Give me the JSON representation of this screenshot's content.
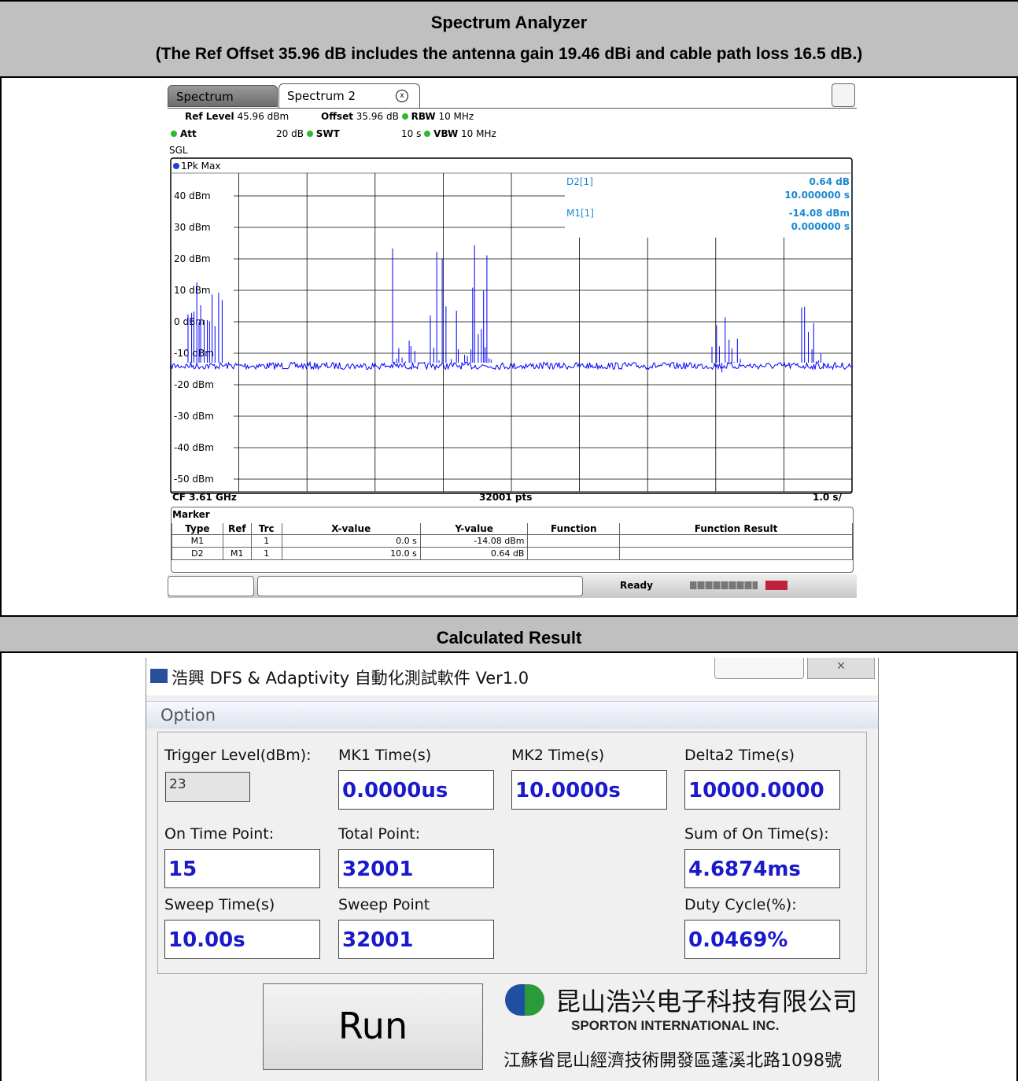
{
  "header": {
    "title": "Spectrum Analyzer",
    "note": "(The Ref Offset 35.96 dB includes the antenna gain 19.46 dBi and cable path loss 16.5 dB.)"
  },
  "spectrum": {
    "tabs": [
      "Spectrum",
      "Spectrum 2"
    ],
    "settings": {
      "ref_level_label": "Ref Level",
      "ref_level": "45.96 dBm",
      "offset_label": "Offset",
      "offset": "35.96 dB",
      "rbw_label": "RBW",
      "rbw": "10 MHz",
      "att_label": "Att",
      "att": "20 dB",
      "swt_label": "SWT",
      "swt": "10 s",
      "vbw_label": "VBW",
      "vbw": "10 MHz",
      "mode": "SGL"
    },
    "trace_label": "1Pk Max",
    "y_labels": [
      "40 dBm",
      "30 dBm",
      "20 dBm",
      "10 dBm",
      "0 dBm",
      "-10 dBm",
      "-20 dBm",
      "-30 dBm",
      "-40 dBm",
      "-50 dBm"
    ],
    "readout": [
      {
        "name": "D2[1]",
        "value": "0.64 dB",
        "time": "10.000000 s"
      },
      {
        "name": "M1[1]",
        "value": "-14.08 dBm",
        "time": "0.000000 s"
      }
    ],
    "footer": {
      "cf": "CF 3.61 GHz",
      "points": "32001 pts",
      "scale": "1.0 s/"
    },
    "marker_table": {
      "title": "Marker",
      "headers": [
        "Type",
        "Ref",
        "Trc",
        "X-value",
        "Y-value",
        "Function",
        "Function Result"
      ],
      "rows": [
        {
          "type": "M1",
          "trc": "1",
          "x": "0.0 s",
          "y": "-14.08 dBm"
        },
        {
          "type": "D2",
          "ref": "M1",
          "trc": "1",
          "x": "10.0 s",
          "y": "0.64 dB"
        }
      ]
    },
    "status": "Ready"
  },
  "calculated": {
    "title": "Calculated Result",
    "app_title": "浩興 DFS & Adaptivity 自動化測試軟件 Ver1.0",
    "menu": "Option",
    "fields": [
      {
        "label": "Trigger Level(dBm):",
        "value": "23"
      },
      {
        "label": "MK1 Time(s)",
        "value": "0.0000us"
      },
      {
        "label": "MK2 Time(s)",
        "value": "10.0000s"
      },
      {
        "label": "Delta2 Time(s)",
        "value": "10000.0000"
      },
      {
        "label": "On Time Point:",
        "value": "15"
      },
      {
        "label": "Total Point:",
        "value": "32001"
      },
      {
        "label": "Sum of On Time(s):",
        "value": "4.6874ms"
      },
      {
        "label": "Sweep Time(s)",
        "value": "10.00s"
      },
      {
        "label": "Sweep Point",
        "value": "32001"
      },
      {
        "label": "Duty Cycle(%):",
        "value": "0.0469%"
      }
    ],
    "button": "Run",
    "company": "昆山浩兴电子科技有限公司",
    "company_en": "SPORTON INTERNATIONAL INC.",
    "address": "江蘇省昆山經濟技術開發區蓬溪北路1098號"
  }
}
